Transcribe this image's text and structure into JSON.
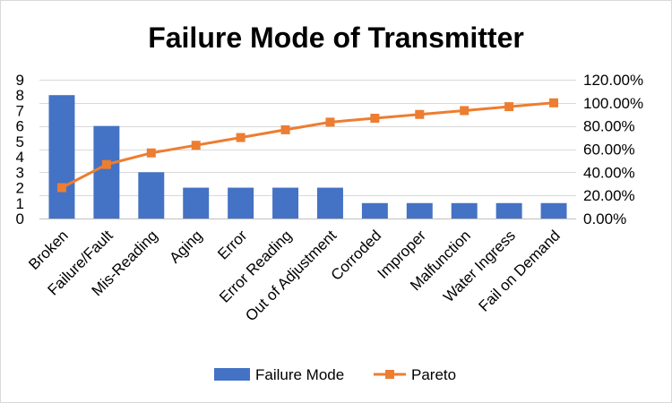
{
  "chart_data": {
    "type": "bar",
    "title": "Failure Mode of Transmitter",
    "categories": [
      "Broken",
      "Failure/Fault",
      "Mis-Reading",
      "Aging",
      "Error",
      "Error Reading",
      "Out of Adjustment",
      "Corroded",
      "Improper",
      "Malfunction",
      "Water Ingress",
      "Fail on Demand"
    ],
    "series": [
      {
        "name": "Failure Mode",
        "type": "bar",
        "axis": "left",
        "color": "#4472C4",
        "values": [
          8,
          6,
          3,
          2,
          2,
          2,
          2,
          1,
          1,
          1,
          1,
          1
        ]
      },
      {
        "name": "Pareto",
        "type": "line",
        "axis": "right",
        "color": "#ED7D31",
        "marker": "square",
        "values": [
          26.7,
          46.7,
          56.7,
          63.3,
          70.0,
          76.7,
          83.3,
          86.7,
          90.0,
          93.3,
          96.7,
          100.0
        ]
      }
    ],
    "y_left": {
      "ylim": [
        0,
        9
      ],
      "ticks": [
        0,
        1,
        2,
        3,
        4,
        5,
        6,
        7,
        8,
        9
      ],
      "tick_labels": [
        "0",
        "1",
        "2",
        "3",
        "4",
        "5",
        "6",
        "7",
        "8",
        "9"
      ]
    },
    "y_right": {
      "ylim": [
        0,
        120
      ],
      "ticks": [
        0,
        20,
        40,
        60,
        80,
        100,
        120
      ],
      "tick_labels": [
        "0.00%",
        "20.00%",
        "40.00%",
        "60.00%",
        "80.00%",
        "100.00%",
        "120.00%"
      ]
    },
    "grid": true,
    "legend_position": "bottom",
    "xlabel": "",
    "ylabel": ""
  }
}
